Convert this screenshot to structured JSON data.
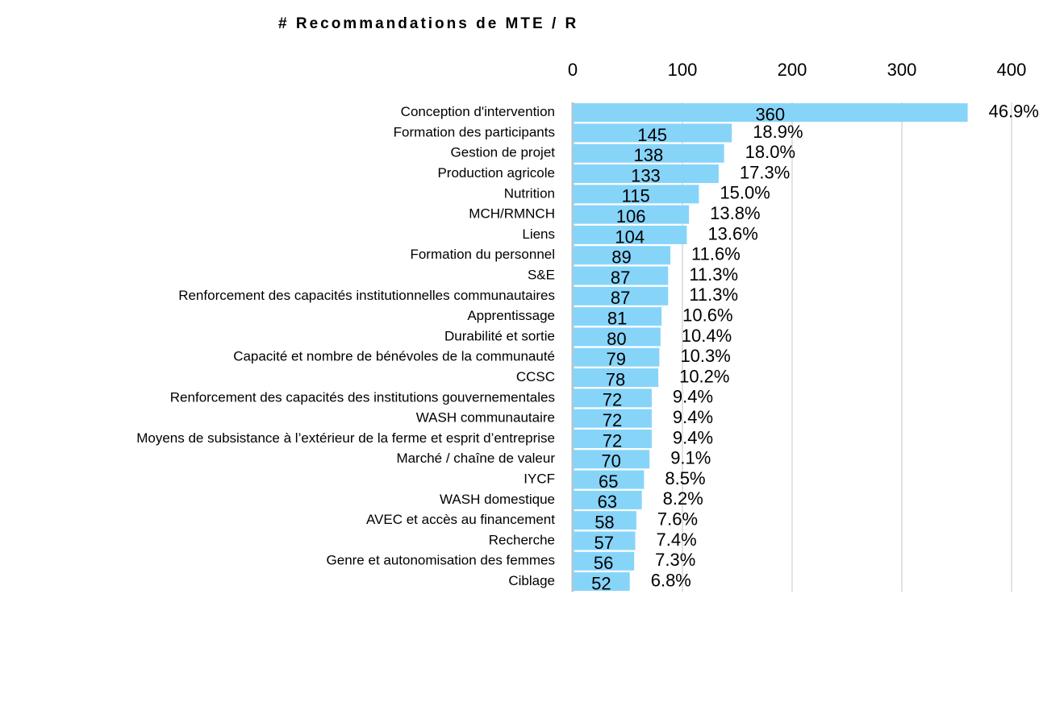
{
  "chart_data": {
    "type": "bar",
    "orientation": "horizontal",
    "title": "# Recommandations de MTE / R",
    "categories": [
      "Conception d'intervention",
      "Formation des participants",
      "Gestion de projet",
      "Production agricole",
      "Nutrition",
      "MCH/RMNCH",
      "Liens",
      "Formation du personnel",
      "S&E",
      "Renforcement des capacités institutionnelles communautaires",
      "Apprentissage",
      "Durabilité et sortie",
      "Capacité et nombre de bénévoles de la communauté",
      "CCSC",
      "Renforcement des capacités des institutions gouvernementales",
      "WASH communautaire",
      "Moyens de subsistance à l’extérieur de la ferme et esprit d’entreprise",
      "Marché / chaîne de valeur",
      "IYCF",
      "WASH domestique",
      "AVEC et accès au financement",
      "Recherche",
      "Genre et autonomisation des femmes",
      "Ciblage"
    ],
    "values": [
      360,
      145,
      138,
      133,
      115,
      106,
      104,
      89,
      87,
      87,
      81,
      80,
      79,
      78,
      72,
      72,
      72,
      70,
      65,
      63,
      58,
      57,
      56,
      52
    ],
    "share_labels": [
      "46.9%",
      "18.9%",
      "18.0%",
      "17.3%",
      "15.0%",
      "13.8%",
      "13.6%",
      "11.6%",
      "11.3%",
      "11.3%",
      "10.6%",
      "10.4%",
      "10.3%",
      "10.2%",
      "9.4%",
      "9.4%",
      "9.4%",
      "9.1%",
      "8.5%",
      "8.2%",
      "7.6%",
      "7.4%",
      "7.3%",
      "6.8%"
    ],
    "color": "#87d4f9",
    "xlim": [
      0,
      400
    ],
    "xticks": [
      0,
      100,
      200,
      300,
      400
    ],
    "grid": true
  }
}
